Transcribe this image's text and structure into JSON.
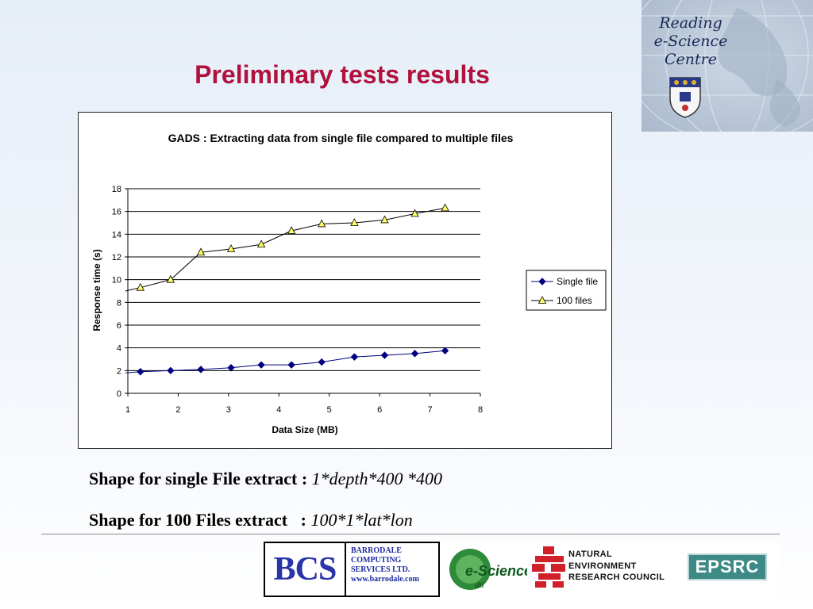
{
  "slide": {
    "title": "Preliminary tests results",
    "caption_1": {
      "label": "Shape for single File extract : ",
      "formula": "1*depth*400 *400"
    },
    "caption_2": {
      "label": "Shape for 100 Files extract   : ",
      "formula": "100*1*lat*lon"
    }
  },
  "brand": {
    "line1": "Reading",
    "line2": "e-Science",
    "line3": "Centre"
  },
  "footer": {
    "bcs_mark": "BCS",
    "bcs_line1": "BARRODALE",
    "bcs_line2": "COMPUTING",
    "bcs_line3": "SERVICES LTD.",
    "bcs_url": "www.barrodale.com",
    "escience_label": "e-Science",
    "escience_sub": "dti",
    "nerc_line1": "NATURAL",
    "nerc_line2": "ENVIRONMENT",
    "nerc_line3": "RESEARCH COUNCIL",
    "epsrc_label": "EPSRC"
  },
  "colors": {
    "title": "#b0113d",
    "single_series": "#000080",
    "multi_series_marker": "#ffff66",
    "multi_series_line": "#000000"
  },
  "chart_data": {
    "type": "line",
    "title": "GADS : Extracting data from single file compared to multiple files",
    "xlabel": "Data Size (MB)",
    "ylabel": "Response time (s)",
    "xlim": [
      1,
      8
    ],
    "ylim": [
      0,
      18
    ],
    "xticks": [
      1,
      2,
      3,
      4,
      5,
      6,
      7,
      8
    ],
    "yticks": [
      0,
      2,
      4,
      6,
      8,
      10,
      12,
      14,
      16,
      18
    ],
    "grid": "horizontal",
    "legend": "right",
    "series": [
      {
        "name": "Single file",
        "marker": "diamond",
        "points": [
          [
            0.95,
            1.8
          ],
          [
            1.25,
            1.9
          ],
          [
            1.85,
            2.0
          ],
          [
            2.45,
            2.1
          ],
          [
            3.05,
            2.25
          ],
          [
            3.65,
            2.5
          ],
          [
            4.25,
            2.5
          ],
          [
            4.85,
            2.75
          ],
          [
            5.5,
            3.2
          ],
          [
            6.1,
            3.35
          ],
          [
            6.7,
            3.5
          ],
          [
            7.3,
            3.75
          ]
        ]
      },
      {
        "name": "100 files",
        "marker": "triangle",
        "points": [
          [
            0.95,
            9.0
          ],
          [
            1.25,
            9.3
          ],
          [
            1.85,
            10.0
          ],
          [
            2.45,
            12.4
          ],
          [
            3.05,
            12.7
          ],
          [
            3.65,
            13.1
          ],
          [
            4.25,
            14.3
          ],
          [
            4.85,
            14.9
          ],
          [
            5.5,
            15.0
          ],
          [
            6.1,
            15.25
          ],
          [
            6.7,
            15.8
          ],
          [
            7.3,
            16.3
          ]
        ]
      }
    ]
  }
}
